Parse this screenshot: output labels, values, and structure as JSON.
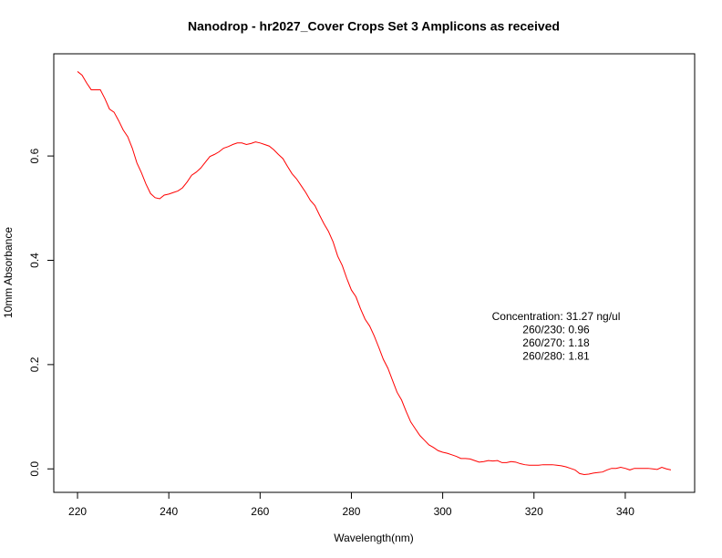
{
  "chart_data": {
    "type": "line",
    "title": "Nanodrop - hr2027_Cover Crops Set 3 Amplicons as received",
    "x_label": "Wavelength(nm)",
    "y_label": "10mm Absorbance",
    "annotations": [
      "Concentration: 31.27 ng/ul",
      "260/230: 0.96",
      "260/270: 1.18",
      "260/280: 1.81"
    ],
    "x": [
      220,
      221,
      222,
      223,
      224,
      225,
      226,
      227,
      228,
      229,
      230,
      231,
      232,
      233,
      234,
      235,
      236,
      237,
      238,
      239,
      240,
      241,
      242,
      243,
      244,
      245,
      246,
      247,
      248,
      249,
      250,
      251,
      252,
      253,
      254,
      255,
      256,
      257,
      258,
      259,
      260,
      261,
      262,
      263,
      264,
      265,
      266,
      267,
      268,
      269,
      270,
      271,
      272,
      273,
      274,
      275,
      276,
      277,
      278,
      279,
      280,
      281,
      282,
      283,
      284,
      285,
      286,
      287,
      288,
      289,
      290,
      291,
      292,
      293,
      294,
      295,
      296,
      297,
      298,
      299,
      300,
      301,
      302,
      303,
      304,
      305,
      306,
      307,
      308,
      309,
      310,
      311,
      312,
      313,
      314,
      315,
      316,
      317,
      318,
      319,
      320,
      321,
      322,
      323,
      324,
      325,
      326,
      327,
      328,
      329,
      330,
      331,
      332,
      333,
      334,
      335,
      336,
      337,
      338,
      339,
      340,
      341,
      342,
      343,
      344,
      345,
      346,
      347,
      348,
      349,
      350
    ],
    "series": [
      {
        "name": "Absorbance",
        "color": "#ff0000",
        "values": [
          0.762,
          0.755,
          0.74,
          0.727,
          0.727,
          0.727,
          0.71,
          0.69,
          0.684,
          0.668,
          0.65,
          0.637,
          0.615,
          0.587,
          0.568,
          0.546,
          0.528,
          0.52,
          0.518,
          0.525,
          0.527,
          0.53,
          0.533,
          0.539,
          0.55,
          0.563,
          0.569,
          0.577,
          0.588,
          0.599,
          0.603,
          0.608,
          0.615,
          0.618,
          0.622,
          0.625,
          0.625,
          0.622,
          0.624,
          0.627,
          0.625,
          0.622,
          0.619,
          0.612,
          0.603,
          0.595,
          0.58,
          0.566,
          0.556,
          0.543,
          0.53,
          0.515,
          0.505,
          0.487,
          0.47,
          0.455,
          0.435,
          0.408,
          0.39,
          0.365,
          0.343,
          0.33,
          0.307,
          0.287,
          0.274,
          0.255,
          0.233,
          0.21,
          0.193,
          0.17,
          0.147,
          0.132,
          0.11,
          0.09,
          0.077,
          0.064,
          0.055,
          0.046,
          0.041,
          0.035,
          0.032,
          0.03,
          0.027,
          0.024,
          0.02,
          0.02,
          0.019,
          0.016,
          0.013,
          0.014,
          0.016,
          0.015,
          0.016,
          0.012,
          0.012,
          0.014,
          0.013,
          0.01,
          0.008,
          0.007,
          0.007,
          0.007,
          0.008,
          0.008,
          0.008,
          0.007,
          0.006,
          0.004,
          0.001,
          -0.002,
          -0.009,
          -0.011,
          -0.01,
          -0.008,
          -0.007,
          -0.006,
          -0.002,
          0.001,
          0.001,
          0.003,
          0.001,
          -0.002,
          0.001,
          0.001,
          0.001,
          0.001,
          0.0,
          -0.001,
          0.003,
          0.0,
          -0.002
        ]
      }
    ],
    "xlim": [
      214.8,
      355.2
    ],
    "ylim": [
      -0.045,
      0.796
    ],
    "xticks": [
      220,
      240,
      260,
      280,
      300,
      320,
      340
    ],
    "yticks": [
      {
        "value": 0,
        "label": "0.0"
      },
      0.2,
      0.4,
      0.6
    ],
    "grid": false
  }
}
